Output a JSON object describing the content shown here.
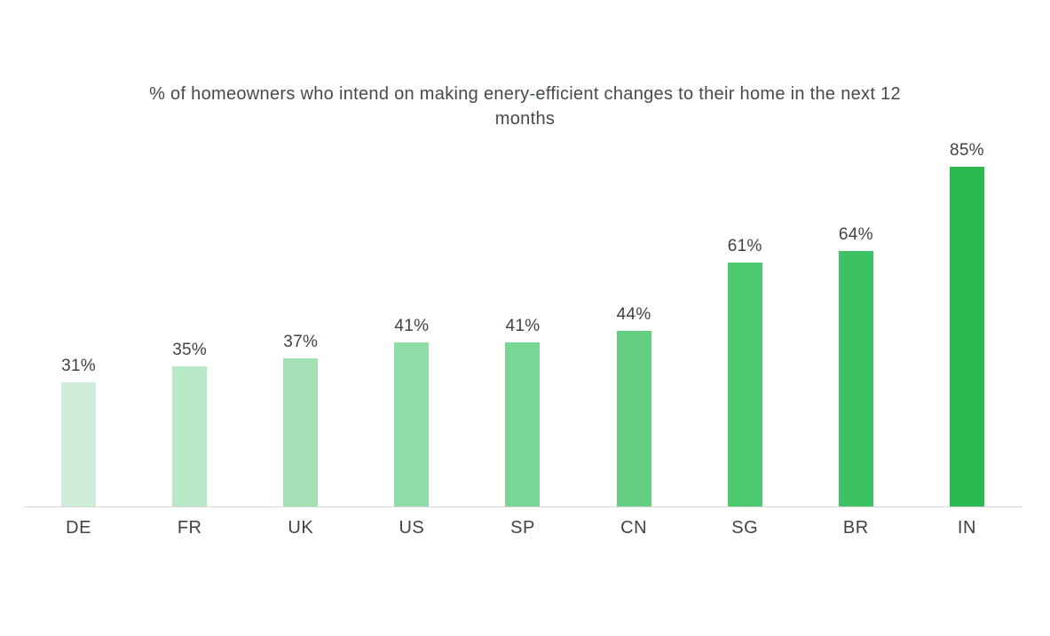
{
  "chart_data": {
    "type": "bar",
    "title": "% of homeowners who intend on making enery-efficient changes to their home in the next 12 months",
    "categories": [
      "DE",
      "FR",
      "UK",
      "US",
      "SP",
      "CN",
      "SG",
      "BR",
      "IN"
    ],
    "values": [
      31,
      35,
      37,
      41,
      41,
      44,
      61,
      64,
      85
    ],
    "value_labels": [
      "31%",
      "35%",
      "37%",
      "41%",
      "41%",
      "44%",
      "61%",
      "64%",
      "85%"
    ],
    "bar_colors": [
      "#cfeeda",
      "#b9e8c8",
      "#a4e0b5",
      "#8edca6",
      "#79d694",
      "#62cf82",
      "#4cc96f",
      "#3cc262",
      "#2abb50"
    ],
    "xlabel": "",
    "ylabel": "",
    "ylim": [
      0,
      100
    ],
    "grid": false,
    "legend": false,
    "background_color": "#ffffff",
    "axis_line_color": "#d9d9d9",
    "text_color": "#3e4446",
    "title_color": "#454b4d"
  }
}
